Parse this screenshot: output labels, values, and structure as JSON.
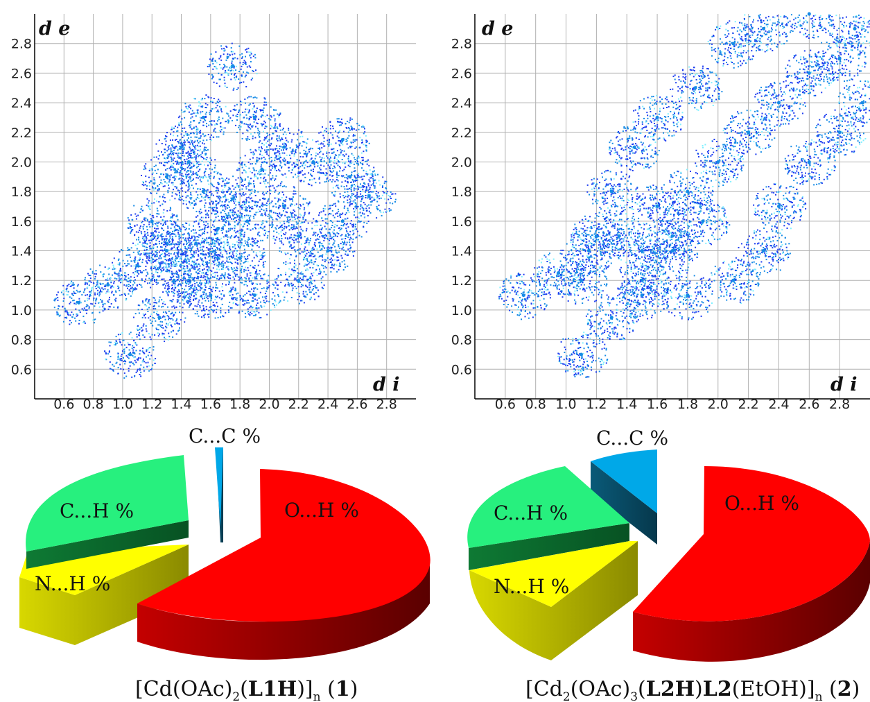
{
  "colors": {
    "scatter_low": "#1d3df0",
    "scatter_mid": "#168be6",
    "scatter_high": "#7ef0ff",
    "grid": "#b0b0b0",
    "axis": "#000000",
    "o_h": "#ff0000",
    "c_h": "#27f07e",
    "n_h": "#ffff00",
    "c_c": "#00a8e8"
  },
  "chart_data": [
    {
      "type": "scatter",
      "title": "",
      "xlabel": "d i",
      "ylabel": "d e",
      "xlim": [
        0.4,
        3.0
      ],
      "ylim": [
        0.4,
        3.0
      ],
      "grid": true,
      "x_ticks": [
        "0.6",
        "0.8",
        "1.0",
        "1.2",
        "1.4",
        "1.6",
        "1.8",
        "2.0",
        "2.2",
        "2.4",
        "2.6",
        "2.8"
      ],
      "y_ticks": [
        "0.6",
        "0.8",
        "1.0",
        "1.2",
        "1.4",
        "1.6",
        "1.8",
        "2.0",
        "2.2",
        "2.4",
        "2.6",
        "2.8"
      ],
      "series": [
        {
          "points": [
            [
              0.7,
              1.05
            ],
            [
              0.9,
              1.17
            ],
            [
              1.1,
              1.3
            ],
            [
              1.3,
              1.45
            ],
            [
              1.05,
              0.7
            ],
            [
              1.25,
              0.95
            ],
            [
              1.45,
              1.2
            ],
            [
              1.65,
              1.35
            ],
            [
              1.35,
              1.2
            ],
            [
              1.3,
              1.4
            ],
            [
              1.2,
              1.6
            ],
            [
              1.3,
              1.9
            ],
            [
              1.4,
              2.1
            ],
            [
              1.55,
              2.3
            ],
            [
              1.75,
              2.65
            ],
            [
              1.9,
              2.3
            ],
            [
              2.1,
              2.1
            ],
            [
              2.3,
              2.0
            ],
            [
              2.5,
              2.15
            ],
            [
              2.55,
              1.9
            ],
            [
              2.68,
              1.77
            ],
            [
              2.5,
              1.6
            ],
            [
              2.4,
              1.4
            ],
            [
              2.2,
              1.2
            ],
            [
              1.9,
              1.1
            ],
            [
              1.6,
              1.1
            ],
            [
              1.55,
              1.8
            ],
            [
              1.75,
              1.75
            ],
            [
              1.85,
              1.6
            ],
            [
              1.95,
              1.95
            ],
            [
              2.1,
              1.7
            ],
            [
              2.2,
              1.5
            ],
            [
              1.5,
              1.45
            ],
            [
              1.65,
              1.55
            ],
            [
              1.8,
              1.35
            ],
            [
              1.45,
              2.0
            ]
          ]
        }
      ],
      "caption": {
        "part1": "[Cd(OAc)",
        "sub1": "2",
        "part2": "(",
        "bold1": "L1H",
        "part3": ")]",
        "sub2": "n",
        "part4": " (",
        "bold2": "1",
        "part5": ")"
      }
    },
    {
      "type": "scatter",
      "title": "",
      "xlabel": "d i",
      "ylabel": "d e",
      "xlim": [
        0.4,
        3.0
      ],
      "ylim": [
        0.4,
        3.0
      ],
      "grid": true,
      "x_ticks": [
        "0.6",
        "0.8",
        "1.0",
        "1.2",
        "1.4",
        "1.6",
        "1.8",
        "2.0",
        "2.2",
        "2.4",
        "2.6",
        "2.8"
      ],
      "y_ticks": [
        "0.6",
        "0.8",
        "1.0",
        "1.2",
        "1.4",
        "1.6",
        "1.8",
        "2.0",
        "2.2",
        "2.4",
        "2.6",
        "2.8"
      ],
      "series": [
        {
          "points": [
            [
              0.72,
              1.1
            ],
            [
              0.95,
              1.25
            ],
            [
              1.15,
              1.4
            ],
            [
              1.35,
              1.5
            ],
            [
              1.1,
              0.7
            ],
            [
              1.3,
              0.95
            ],
            [
              1.5,
              1.2
            ],
            [
              1.7,
              1.4
            ],
            [
              1.1,
              1.2
            ],
            [
              1.2,
              1.5
            ],
            [
              1.3,
              1.8
            ],
            [
              1.45,
              2.1
            ],
            [
              1.6,
              2.3
            ],
            [
              1.85,
              2.5
            ],
            [
              2.1,
              2.8
            ],
            [
              2.3,
              2.9
            ],
            [
              2.6,
              3.0
            ],
            [
              2.9,
              2.9
            ],
            [
              2.95,
              2.4
            ],
            [
              2.8,
              2.2
            ],
            [
              2.6,
              2.0
            ],
            [
              2.4,
              1.7
            ],
            [
              2.3,
              1.4
            ],
            [
              2.1,
              1.2
            ],
            [
              1.8,
              1.1
            ],
            [
              1.5,
              1.1
            ],
            [
              1.6,
              1.7
            ],
            [
              1.8,
              1.8
            ],
            [
              1.9,
              1.6
            ],
            [
              2.0,
              2.0
            ],
            [
              2.2,
              2.2
            ],
            [
              2.4,
              2.4
            ],
            [
              1.7,
              1.5
            ],
            [
              1.5,
              1.4
            ],
            [
              2.6,
              2.6
            ],
            [
              2.8,
              2.7
            ]
          ]
        }
      ],
      "caption": {
        "part1": "[Cd",
        "sub1": "2",
        "part2": "(OAc)",
        "sub2": "3",
        "part3": "(",
        "bold1": "L2H",
        "part4": ")",
        "bold2": "L2",
        "part5": "(EtOH)]",
        "sub3": "n",
        "part6": " (",
        "bold3": "2",
        "part7": ")"
      }
    },
    {
      "type": "pie",
      "title": "",
      "slices": [
        {
          "label": "O...H %",
          "value": 61.5,
          "color": "#ff0000"
        },
        {
          "label": "C...H %",
          "value": 24.5,
          "color": "#27f07e"
        },
        {
          "label": "N...H %",
          "value": 13.5,
          "color": "#ffff00"
        },
        {
          "label": "C...C %",
          "value": 0.5,
          "color": "#00a8e8"
        }
      ]
    },
    {
      "type": "pie",
      "title": "",
      "slices": [
        {
          "label": "O...H %",
          "value": 56.0,
          "color": "#ff0000"
        },
        {
          "label": "C...H %",
          "value": 20.0,
          "color": "#27f07e"
        },
        {
          "label": "N...H %",
          "value": 17.0,
          "color": "#ffff00"
        },
        {
          "label": "C...C %",
          "value": 7.0,
          "color": "#00a8e8"
        }
      ]
    }
  ]
}
